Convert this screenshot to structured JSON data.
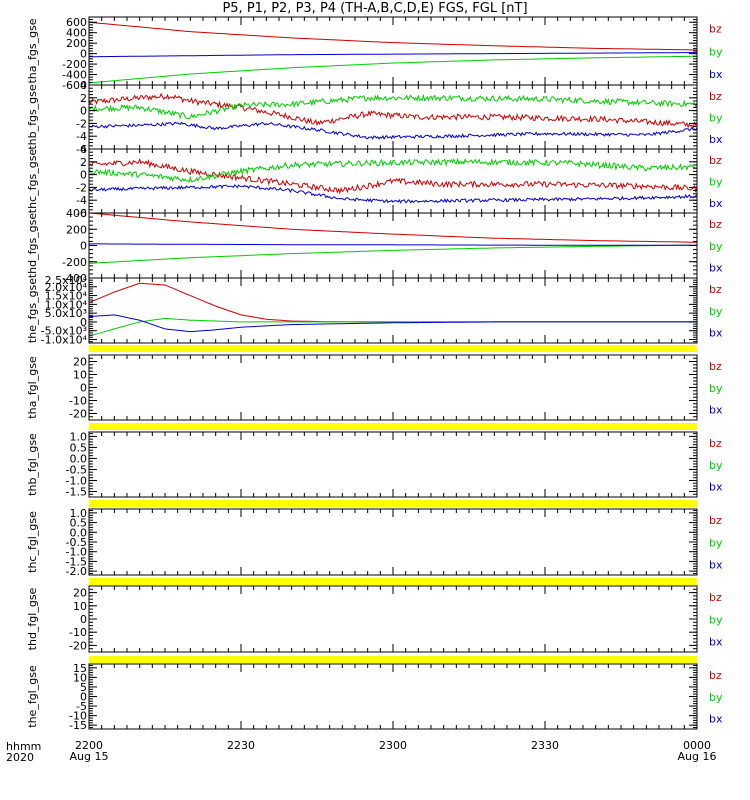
{
  "title": "P5, P1, P2, P3, P4 (TH-A,B,C,D,E) FGS, FGL [nT]",
  "colors": {
    "bz": "#cc0000",
    "by": "#00cc00",
    "bx": "#0000cc",
    "flag": "#ffff00",
    "axis": "#000000"
  },
  "time_labels": {
    "row_label": "hhmm",
    "year_label": "2020"
  },
  "chart_data": {
    "type": "line",
    "x_range_minutes": [
      0,
      120
    ],
    "x_ticks": [
      {
        "t": 0,
        "hhmm": "2200",
        "date": "Aug 15"
      },
      {
        "t": 30,
        "hhmm": "2230",
        "date": ""
      },
      {
        "t": 60,
        "hhmm": "2300",
        "date": ""
      },
      {
        "t": 90,
        "hhmm": "2330",
        "date": ""
      },
      {
        "t": 120,
        "hhmm": "0000",
        "date": "Aug 16"
      }
    ],
    "panels": [
      {
        "ylabel": "tha_fgs_gse",
        "ylim": [
          -600,
          700
        ],
        "yticks": [
          -600,
          -400,
          -200,
          0,
          200,
          400,
          600
        ],
        "ytick_labels": [
          "-600",
          "-400",
          "-200",
          "0",
          "200",
          "400",
          "600"
        ],
        "legend": [
          "bz",
          "by",
          "bx"
        ],
        "series": [
          {
            "name": "bz",
            "t": [
              0,
              20,
              40,
              60,
              80,
              100,
              120
            ],
            "values": [
              600,
              420,
              300,
              210,
              150,
              100,
              70
            ],
            "noise": 0
          },
          {
            "name": "by",
            "t": [
              0,
              20,
              40,
              60,
              80,
              100,
              120
            ],
            "values": [
              -560,
              -390,
              -270,
              -180,
              -120,
              -80,
              -50
            ],
            "noise": 0
          },
          {
            "name": "bx",
            "t": [
              0,
              20,
              40,
              60,
              80,
              100,
              120
            ],
            "values": [
              -60,
              -40,
              -20,
              -10,
              0,
              10,
              20
            ],
            "noise": 0
          }
        ]
      },
      {
        "ylabel": "thb_fgs_gse",
        "ylim": [
          -6,
          4
        ],
        "yticks": [
          -6,
          -4,
          -2,
          0,
          2,
          4
        ],
        "ytick_labels": [
          "-6",
          "-4",
          "-2",
          "0",
          "2",
          "4"
        ],
        "legend": [
          "bz",
          "by",
          "bx"
        ],
        "series": [
          {
            "name": "bz",
            "t": [
              0,
              10,
              16,
              20,
              30,
              40,
              45,
              55,
              65,
              80,
              100,
              115,
              120
            ],
            "values": [
              1.3,
              2.0,
              2.3,
              1.5,
              0.5,
              -1.0,
              -2.0,
              -0.5,
              -1.0,
              -1.0,
              -1.3,
              -2.0,
              -2.3
            ],
            "noise": 0.45
          },
          {
            "name": "by",
            "t": [
              0,
              10,
              20,
              30,
              40,
              55,
              70,
              90,
              110,
              120
            ],
            "values": [
              0.3,
              0.5,
              -1.0,
              0.8,
              1.0,
              2.0,
              2.0,
              1.8,
              1.2,
              1.0
            ],
            "noise": 0.45
          },
          {
            "name": "bx",
            "t": [
              0,
              10,
              18,
              25,
              35,
              45,
              55,
              70,
              90,
              110,
              118,
              120
            ],
            "values": [
              -2.5,
              -2.3,
              -2.0,
              -2.8,
              -2.0,
              -3.0,
              -4.2,
              -4.0,
              -3.6,
              -3.8,
              -3.0,
              -2.8
            ],
            "noise": 0.25
          }
        ]
      },
      {
        "ylabel": "thc_fgs_gse",
        "ylim": [
          -6,
          4
        ],
        "yticks": [
          -6,
          -4,
          -2,
          0,
          2,
          4
        ],
        "ytick_labels": [
          "-6",
          "-4",
          "-2",
          "0",
          "2",
          "4"
        ],
        "legend": [
          "bz",
          "by",
          "bx"
        ],
        "series": [
          {
            "name": "bz",
            "t": [
              0,
              10,
              20,
              30,
              40,
              50,
              60,
              70,
              90,
              110,
              120
            ],
            "values": [
              1.5,
              2.0,
              0.5,
              -0.5,
              -1.5,
              -2.5,
              -1.0,
              -1.5,
              -1.5,
              -1.8,
              -2.2
            ],
            "noise": 0.45
          },
          {
            "name": "by",
            "t": [
              0,
              10,
              20,
              30,
              40,
              55,
              75,
              95,
              110,
              120
            ],
            "values": [
              0.5,
              0.0,
              -0.8,
              0.5,
              1.5,
              1.8,
              2.0,
              1.8,
              1.0,
              1.2
            ],
            "noise": 0.45
          },
          {
            "name": "bx",
            "t": [
              0,
              10,
              20,
              30,
              40,
              50,
              60,
              80,
              100,
              120
            ],
            "values": [
              -2.4,
              -2.2,
              -2.0,
              -1.8,
              -2.5,
              -3.8,
              -4.2,
              -4.0,
              -3.8,
              -3.4
            ],
            "noise": 0.25
          }
        ]
      },
      {
        "ylabel": "thd_fgs_gse",
        "ylim": [
          -400,
          400
        ],
        "yticks": [
          -400,
          -200,
          0,
          200,
          400
        ],
        "ytick_labels": [
          "-400",
          "-200",
          "0",
          "200",
          "400"
        ],
        "legend": [
          "bz",
          "by",
          "bx"
        ],
        "series": [
          {
            "name": "bz",
            "t": [
              0,
              20,
              40,
              60,
              80,
              100,
              120
            ],
            "values": [
              400,
              290,
              200,
              140,
              90,
              60,
              40
            ],
            "noise": 0
          },
          {
            "name": "by",
            "t": [
              0,
              20,
              40,
              60,
              80,
              100,
              120
            ],
            "values": [
              -220,
              -150,
              -100,
              -60,
              -30,
              -10,
              5
            ],
            "noise": 0
          },
          {
            "name": "bx",
            "t": [
              0,
              20,
              40,
              60,
              80,
              100,
              120
            ],
            "values": [
              20,
              15,
              10,
              8,
              5,
              3,
              2
            ],
            "noise": 0
          }
        ]
      },
      {
        "ylabel": "the_fgs_gse",
        "ylim": [
          -12000,
          25000
        ],
        "yticks": [
          -10000,
          -5000,
          0,
          5000,
          10000,
          15000,
          20000
        ],
        "ytick_labels": [
          "-1.0x10⁴",
          "-5.0x10³",
          "0",
          "5.0x10³",
          "1.0x10⁴",
          "1.5x10⁴",
          "2.0x10⁴"
        ],
        "extra_top_label": "2.5x10⁴",
        "legend": [
          "bz",
          "by",
          "bx"
        ],
        "series": [
          {
            "name": "bz",
            "t": [
              0,
              5,
              10,
              15,
              20,
              25,
              30,
              35,
              40,
              50,
              60,
              80,
              100,
              120
            ],
            "values": [
              11000,
              17000,
              22000,
              21000,
              15000,
              9000,
              4000,
              1500,
              500,
              0,
              0,
              0,
              0,
              0
            ],
            "noise": 0
          },
          {
            "name": "by",
            "t": [
              0,
              5,
              10,
              15,
              20,
              25,
              30,
              40,
              60,
              80,
              100,
              120
            ],
            "values": [
              -8000,
              -4000,
              0,
              2000,
              1000,
              500,
              0,
              0,
              0,
              0,
              0,
              0
            ],
            "noise": 0
          },
          {
            "name": "bx",
            "t": [
              0,
              5,
              10,
              15,
              20,
              25,
              30,
              40,
              60,
              80,
              100,
              120
            ],
            "values": [
              3000,
              4000,
              1000,
              -4000,
              -5500,
              -4500,
              -3000,
              -1500,
              -500,
              0,
              0,
              0
            ],
            "noise": 0
          }
        ]
      },
      {
        "ylabel": "tha_fgl_gse",
        "ylim": [
          -25,
          25
        ],
        "yticks": [
          -20,
          -10,
          0,
          10,
          20
        ],
        "ytick_labels": [
          "-20",
          "-10",
          "0",
          "10",
          "20"
        ],
        "legend": [
          "bz",
          "by",
          "bx"
        ],
        "series": []
      },
      {
        "ylabel": "thb_fgl_gse",
        "ylim": [
          -1.75,
          1.2
        ],
        "yticks": [
          -1.5,
          -1.0,
          -0.5,
          0.0,
          0.5,
          1.0
        ],
        "ytick_labels": [
          "-1.5",
          "-1.0",
          "-0.5",
          "0.0",
          "0.5",
          "1.0"
        ],
        "legend": [
          "bz",
          "by",
          "bx"
        ],
        "series": []
      },
      {
        "ylabel": "thc_fgl_gse",
        "ylim": [
          -2.2,
          1.2
        ],
        "yticks": [
          -2.0,
          -1.5,
          -1.0,
          -0.5,
          0.0,
          0.5,
          1.0
        ],
        "ytick_labels": [
          "-2.0",
          "-1.5",
          "-1.0",
          "-0.5",
          "0.0",
          "0.5",
          "1.0"
        ],
        "legend": [
          "bz",
          "by",
          "bx"
        ],
        "series": []
      },
      {
        "ylabel": "thd_fgl_gse",
        "ylim": [
          -25,
          25
        ],
        "yticks": [
          -20,
          -10,
          0,
          10,
          20
        ],
        "ytick_labels": [
          "-20",
          "-10",
          "0",
          "10",
          "20"
        ],
        "legend": [
          "bz",
          "by",
          "bx"
        ],
        "series": []
      },
      {
        "ylabel": "the_fgl_gse",
        "ylim": [
          -17,
          17
        ],
        "yticks": [
          -15,
          -10,
          -5,
          0,
          5,
          10,
          15
        ],
        "ytick_labels": [
          "-15",
          "-10",
          "-5",
          "0",
          "5",
          "10",
          "15"
        ],
        "legend": [
          "bz",
          "by",
          "bx"
        ],
        "series": []
      }
    ]
  }
}
